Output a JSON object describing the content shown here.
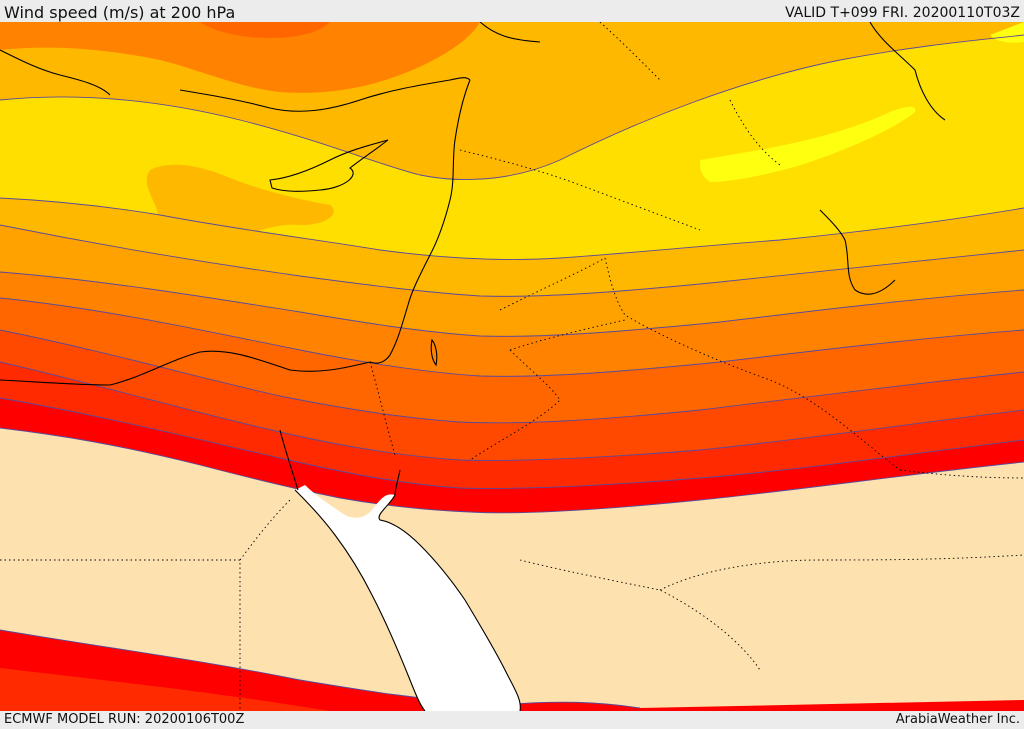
{
  "header": {
    "title": "Wind speed (m/s) at 200 hPa",
    "valid": "VALID T+099 FRI. 20200110T03Z"
  },
  "footer": {
    "model_run": "ECMWF MODEL RUN: 20200106T00Z",
    "credit": "ArabiaWeather Inc."
  },
  "colors": {
    "band_1": "#fde1ae",
    "band_2": "#ff0000",
    "band_3": "#ff2a00",
    "band_4": "#ff4800",
    "band_5": "#ff6600",
    "band_6": "#ff8300",
    "band_7": "#ffa200",
    "band_8": "#ffb800",
    "band_9": "#ffdf00",
    "band_10": "#ffff10",
    "sea": "#ffffff",
    "isoline": "#5b4a9a"
  }
}
